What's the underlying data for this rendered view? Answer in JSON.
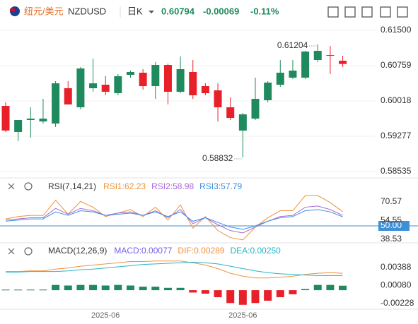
{
  "chart_data": [
    {
      "type": "candlestick",
      "title": "纽元/美元",
      "symbol": "NZDUSD",
      "period": "日K",
      "price": 0.60794,
      "change": -0.00069,
      "change_pct": "-0.11%",
      "up_color": "#1e8a5e",
      "down_color": "#e8202a",
      "grid": true,
      "ylim": [
        0.58432,
        0.61693
      ],
      "yticks": [
        {
          "value": 0.615,
          "label": "0.61500"
        },
        0.60759,
        0.60018,
        0.59277,
        0.58535
      ],
      "annotations": [
        "0.61204",
        "0.58832"
      ],
      "open": [
        0.59914,
        0.59366,
        0.59618,
        0.59588,
        0.59544,
        0.60285,
        0.59885,
        0.60285,
        0.60359,
        0.60181,
        0.60566,
        0.60611,
        0.60329,
        0.60774,
        0.60211,
        0.60626,
        0.60329,
        0.6024,
        0.59885,
        0.59396,
        0.59647,
        0.60033,
        0.60359,
        0.60507,
        0.60507,
        0.60878,
        0.60981,
        0.60863
      ],
      "high": [
        0.59988,
        0.59618,
        0.59885,
        0.60062,
        0.60433,
        0.60433,
        0.60729,
        0.60907,
        0.60537,
        0.60581,
        0.60655,
        0.60685,
        0.60833,
        0.60803,
        0.60952,
        0.60878,
        0.60388,
        0.60388,
        0.60092,
        0.59766,
        0.60507,
        0.60433,
        0.60878,
        0.60878,
        0.6107,
        0.61204,
        0.61174,
        0.60966
      ],
      "low": [
        0.59366,
        0.59173,
        0.59247,
        0.59544,
        0.5947,
        0.59944,
        0.5984,
        0.60211,
        0.60137,
        0.60137,
        0.60507,
        0.60255,
        0.60062,
        0.59944,
        0.60181,
        0.60062,
        0.60137,
        0.59588,
        0.59618,
        0.58832,
        0.59618,
        0.59988,
        0.60314,
        0.60477,
        0.60477,
        0.60833,
        0.60581,
        0.60729
      ],
      "close": [
        0.59396,
        0.59618,
        0.59647,
        0.59647,
        0.60388,
        0.59944,
        0.607,
        0.60388,
        0.60211,
        0.60537,
        0.60626,
        0.60329,
        0.60774,
        0.60211,
        0.60685,
        0.60137,
        0.60181,
        0.59885,
        0.59662,
        0.59736,
        0.60062,
        0.60403,
        0.60611,
        0.60655,
        0.61055,
        0.6107,
        0.6097,
        0.60794
      ]
    },
    {
      "type": "line",
      "title": "RSI(7,14,21)",
      "ylim": [
        34.9,
        87.5
      ],
      "yticks": [
        38.53,
        {
          "value": 50,
          "label": "50.00",
          "color": "#3d8fd6"
        },
        54.55,
        70.57
      ],
      "series": [
        {
          "name": "RSI1:62.23",
          "color": "#f0913a",
          "values": [
            56,
            58,
            59,
            59,
            72,
            60,
            71,
            66,
            58,
            61,
            64,
            58,
            66,
            55,
            68,
            48,
            58,
            46,
            40,
            38,
            49,
            57,
            63,
            63,
            76,
            76,
            70,
            62.23
          ]
        },
        {
          "name": "RSI2:58.98",
          "color": "#a66ad6",
          "values": [
            55,
            56,
            57,
            57,
            65,
            60,
            65,
            63,
            59,
            61,
            62,
            59,
            63,
            57,
            64,
            52,
            57,
            51,
            46,
            44,
            49,
            54,
            58,
            59,
            66,
            67,
            64,
            58.98
          ]
        },
        {
          "name": "RSI3:57.79",
          "color": "#3f8fe0",
          "values": [
            54,
            55,
            56,
            56,
            62,
            59,
            63,
            62,
            59,
            60,
            61,
            59,
            62,
            58,
            62,
            54,
            57,
            53,
            49,
            47,
            50,
            54,
            57,
            58,
            63,
            64,
            62,
            57.79
          ]
        }
      ]
    },
    {
      "type": "combo",
      "title": "MACD(12,26,9)",
      "ylim": [
        -0.00325,
        0.00714
      ],
      "yticks": [
        0.00388,
        {
          "value": 0.0008,
          "label": "0.00080"
        },
        -0.00228
      ],
      "categories": [
        null,
        null,
        null,
        null,
        null,
        null,
        null,
        null,
        "2025-06",
        null,
        null,
        null,
        null,
        null,
        null,
        null,
        null,
        null,
        null,
        "2025-06",
        null,
        null,
        null,
        null,
        null,
        null,
        null,
        null
      ],
      "series": [
        {
          "name": "MACD:0.00077",
          "kind": "bar",
          "color": "#1e8a5e",
          "negative_color": "#e8202a",
          "label_color": "#7a5cf0",
          "values": [
            0.0001,
            0.0001,
            0.0001,
            0.0001,
            0.0009,
            0.0008,
            0.0009,
            0.0009,
            0.0008,
            0.0009,
            0.0008,
            0.0006,
            0.0006,
            0.0004,
            0.0004,
            -0.0004,
            -0.0006,
            -0.0012,
            -0.0022,
            -0.0025,
            -0.0022,
            -0.0018,
            -0.0012,
            -0.0007,
            0.0002,
            0.0009,
            0.0009,
            0.00077
          ]
        },
        {
          "name": "DIF:0.00289",
          "kind": "line",
          "color": "#f0913a",
          "values": [
            0.0032,
            0.0032,
            0.0033,
            0.0033,
            0.0036,
            0.0038,
            0.0041,
            0.0043,
            0.0045,
            0.0047,
            0.0049,
            0.0049,
            0.005,
            0.005,
            0.005,
            0.0047,
            0.0043,
            0.0037,
            0.0029,
            0.0024,
            0.0021,
            0.0021,
            0.0022,
            0.0024,
            0.0027,
            0.0029,
            0.003,
            0.00289
          ]
        },
        {
          "name": "DEA:0.00250",
          "kind": "line",
          "color": "#26b5c4",
          "values": [
            0.0031,
            0.0031,
            0.0032,
            0.0032,
            0.0032,
            0.0033,
            0.0035,
            0.0036,
            0.0038,
            0.004,
            0.0042,
            0.0044,
            0.0045,
            0.0046,
            0.0047,
            0.0048,
            0.0047,
            0.0045,
            0.0041,
            0.0037,
            0.0033,
            0.003,
            0.0028,
            0.0027,
            0.0026,
            0.0025,
            0.0025,
            0.0025
          ]
        }
      ]
    }
  ]
}
